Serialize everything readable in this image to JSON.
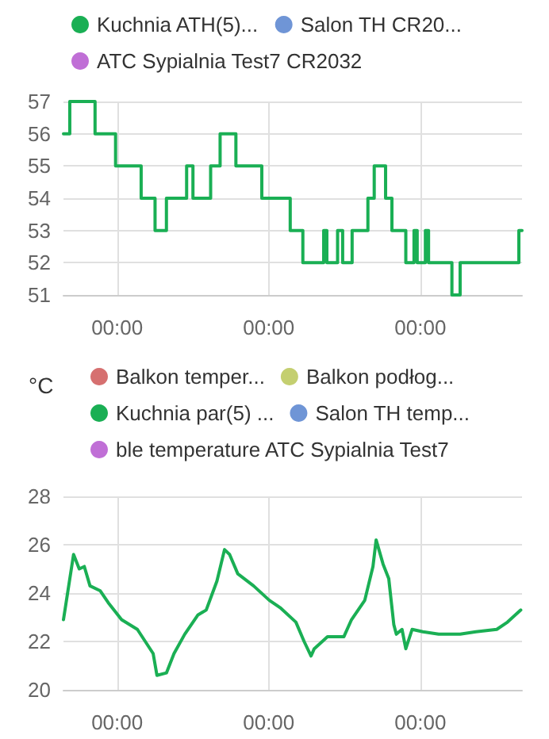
{
  "chart_data": [
    {
      "type": "step",
      "legend": "top",
      "grid": true,
      "marker": "none",
      "line_style": "solid",
      "x": [
        "--01-01T15:30",
        "--01-01T16:30",
        "--01-01T20:30",
        "--01-01T23:45",
        "--01-02T03:48",
        "--01-02T06:00",
        "--01-02T07:48",
        "--01-02T11:00",
        "--01-02T12:00",
        "--01-02T14:48",
        "--01-02T16:18",
        "--01-02T18:48",
        "--01-02T22:54",
        "--01-03T03:24",
        "--01-03T05:24",
        "--01-03T08:42",
        "--01-03T09:12",
        "--01-03T10:54",
        "--01-03T11:42",
        "--01-03T13:12",
        "--01-03T15:42",
        "--01-03T16:42",
        "--01-03T18:30",
        "--01-03T19:30",
        "--01-03T21:42",
        "--01-03T23:00",
        "--01-03T23:30",
        "--01-04T00:48",
        "--01-04T01:18",
        "--01-04T05:00",
        "--01-04T06:18",
        "--01-04T15:36",
        "--01-04T16:06"
      ],
      "xlim": [
        "--01-01T15:30",
        "--01-04T16:06"
      ],
      "xticks": [
        {
          "value": "--01-02T00:00",
          "label": "00:00"
        },
        {
          "value": "--01-03T00:00",
          "label": "00:00"
        },
        {
          "value": "--01-04T00:00",
          "label": "00:00"
        }
      ],
      "ylim": [
        51,
        57
      ],
      "yticks": [
        51,
        52,
        53,
        54,
        55,
        56,
        57
      ],
      "series": [
        {
          "name": "Kuchnia ATH(5)...",
          "color": "#1aaf54",
          "values": [
            56,
            57,
            56,
            55,
            54,
            53,
            54,
            55,
            54,
            55,
            56,
            55,
            54,
            53,
            52,
            53,
            52,
            53,
            52,
            53,
            54,
            55,
            54,
            53,
            52,
            53,
            52,
            53,
            52,
            51,
            52,
            53,
            53
          ]
        },
        {
          "name": "Salon TH CR20...",
          "color": "#6f95d6",
          "values": [
            null,
            null,
            null,
            null,
            null,
            null,
            null,
            null,
            null,
            null,
            null,
            null,
            null,
            null,
            null,
            null,
            null,
            null,
            null,
            null,
            null,
            null,
            null,
            null,
            null,
            null,
            null,
            null,
            null,
            null,
            null,
            null,
            null
          ]
        },
        {
          "name": "ATC Sypialnia Test7 CR2032",
          "color": "#c06fd6",
          "values": [
            null,
            null,
            null,
            null,
            null,
            null,
            null,
            null,
            null,
            null,
            null,
            null,
            null,
            null,
            null,
            null,
            null,
            null,
            null,
            null,
            null,
            null,
            null,
            null,
            null,
            null,
            null,
            null,
            null,
            null,
            null,
            null,
            null
          ]
        }
      ]
    },
    {
      "type": "line",
      "legend": "top",
      "grid": true,
      "marker": "none",
      "line_style": "solid",
      "ylabel": "°C",
      "x": [
        "--01-01T15:30",
        "--01-01T17:06",
        "--01-01T18:00",
        "--01-01T18:48",
        "--01-01T19:42",
        "--01-01T21:18",
        "--01-01T22:36",
        "--01-02T00:42",
        "--01-02T03:12",
        "--01-02T05:42",
        "--01-02T06:18",
        "--01-02T07:48",
        "--01-02T09:00",
        "--01-02T10:42",
        "--01-02T12:48",
        "--01-02T14:06",
        "--01-02T15:48",
        "--01-02T17:00",
        "--01-02T17:48",
        "--01-02T19:06",
        "--01-02T21:36",
        "--01-03T00:06",
        "--01-03T01:48",
        "--01-03T04:18",
        "--01-03T05:36",
        "--01-03T06:42",
        "--01-03T07:12",
        "--01-03T09:18",
        "--01-03T11:54",
        "--01-03T13:06",
        "--01-03T15:12",
        "--01-03T16:30",
        "--01-03T17:00",
        "--01-03T18:06",
        "--01-03T19:00",
        "--01-03T19:48",
        "--01-03T20:12",
        "--01-03T21:06",
        "--01-03T21:42",
        "--01-03T22:42",
        "--01-04T00:24",
        "--01-04T02:54",
        "--01-04T06:18",
        "--01-04T08:48",
        "--01-04T12:06",
        "--01-04T13:48",
        "--01-04T15:54"
      ],
      "xlim": [
        "--01-01T15:30",
        "--01-04T16:06"
      ],
      "xticks": [
        {
          "value": "--01-02T00:00",
          "label": "00:00"
        },
        {
          "value": "--01-03T00:00",
          "label": "00:00"
        },
        {
          "value": "--01-04T00:00",
          "label": "00:00"
        }
      ],
      "ylim": [
        20,
        28
      ],
      "yticks": [
        20,
        22,
        24,
        26,
        28
      ],
      "series": [
        {
          "name": "Balkon temper...",
          "color": "#d67070",
          "values": [
            null,
            null,
            null,
            null,
            null,
            null,
            null,
            null,
            null,
            null,
            null,
            null,
            null,
            null,
            null,
            null,
            null,
            null,
            null,
            null,
            null,
            null,
            null,
            null,
            null,
            null,
            null,
            null,
            null,
            null,
            null,
            null,
            null,
            null,
            null,
            null,
            null,
            null,
            null,
            null,
            null,
            null,
            null,
            null,
            null,
            null,
            null
          ]
        },
        {
          "name": "Balkon podłog...",
          "color": "#c4cf70",
          "values": [
            null,
            null,
            null,
            null,
            null,
            null,
            null,
            null,
            null,
            null,
            null,
            null,
            null,
            null,
            null,
            null,
            null,
            null,
            null,
            null,
            null,
            null,
            null,
            null,
            null,
            null,
            null,
            null,
            null,
            null,
            null,
            null,
            null,
            null,
            null,
            null,
            null,
            null,
            null,
            null,
            null,
            null,
            null,
            null,
            null,
            null,
            null
          ]
        },
        {
          "name": "Kuchnia par(5) ...",
          "color": "#1aaf54",
          "values": [
            22.9,
            25.6,
            25.0,
            25.1,
            24.3,
            24.1,
            23.6,
            22.9,
            22.5,
            21.5,
            20.6,
            20.7,
            21.5,
            22.3,
            23.1,
            23.3,
            24.5,
            25.8,
            25.6,
            24.8,
            24.3,
            23.7,
            23.4,
            22.8,
            22.0,
            21.4,
            21.7,
            22.2,
            22.2,
            22.9,
            23.7,
            25.1,
            26.2,
            25.2,
            24.6,
            22.7,
            22.3,
            22.5,
            21.7,
            22.5,
            22.4,
            22.3,
            22.3,
            22.4,
            22.5,
            22.8,
            23.3
          ]
        },
        {
          "name": "Salon TH temp...",
          "color": "#6f95d6",
          "values": [
            null,
            null,
            null,
            null,
            null,
            null,
            null,
            null,
            null,
            null,
            null,
            null,
            null,
            null,
            null,
            null,
            null,
            null,
            null,
            null,
            null,
            null,
            null,
            null,
            null,
            null,
            null,
            null,
            null,
            null,
            null,
            null,
            null,
            null,
            null,
            null,
            null,
            null,
            null,
            null,
            null,
            null,
            null,
            null,
            null,
            null,
            null
          ]
        },
        {
          "name": "ble temperature ATC Sypialnia Test7",
          "color": "#c06fd6",
          "values": [
            null,
            null,
            null,
            null,
            null,
            null,
            null,
            null,
            null,
            null,
            null,
            null,
            null,
            null,
            null,
            null,
            null,
            null,
            null,
            null,
            null,
            null,
            null,
            null,
            null,
            null,
            null,
            null,
            null,
            null,
            null,
            null,
            null,
            null,
            null,
            null,
            null,
            null,
            null,
            null,
            null,
            null,
            null,
            null,
            null,
            null,
            null
          ]
        }
      ]
    }
  ]
}
